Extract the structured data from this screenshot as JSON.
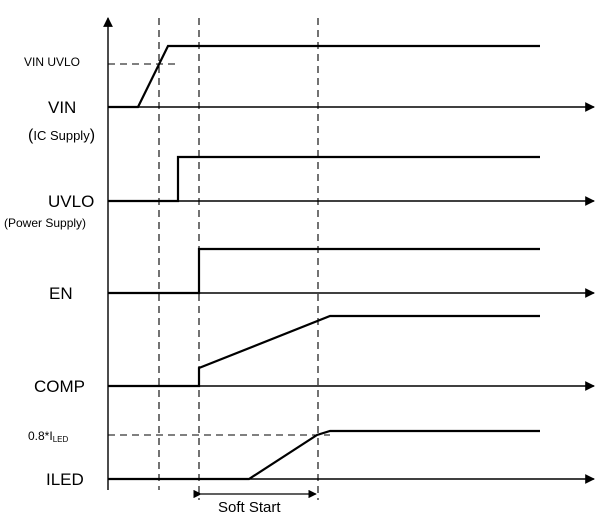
{
  "signals": {
    "vin": {
      "name": "VIN",
      "sub_open": "(",
      "sub_ic": "IC Supply",
      "sub_close": ")"
    },
    "uvlo": {
      "name": "UVLO",
      "sub": "(Power Supply)"
    },
    "en": {
      "name": "EN"
    },
    "comp": {
      "name": "COMP"
    },
    "iled": {
      "name": "ILED"
    }
  },
  "thresholds": {
    "vin_uvlo": "VIN UVLO",
    "iled_prefix": "0.8*I",
    "iled_subscript": "LED"
  },
  "intervals": {
    "soft_start": "Soft Start"
  }
}
